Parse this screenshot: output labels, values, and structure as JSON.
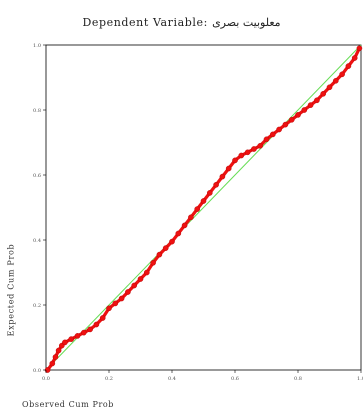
{
  "chart_data": {
    "type": "line",
    "title": "Dependent Variable: معلوبیت بصری",
    "xlabel": "Observed Cum Prob",
    "ylabel": "Expected Cum Prob",
    "xlim": [
      0,
      1
    ],
    "ylim": [
      0,
      1
    ],
    "xticks": [
      "0.0",
      "0.2",
      "0.4",
      "0.6",
      "0.8",
      "1.0"
    ],
    "yticks": [
      "0.0",
      "0.2",
      "0.4",
      "0.6",
      "0.8",
      "1.0"
    ],
    "grid": false,
    "series": [
      {
        "style": "points",
        "color": "#ee1111",
        "x": [
          0.005,
          0.02,
          0.03,
          0.04,
          0.05,
          0.06,
          0.08,
          0.1,
          0.12,
          0.14,
          0.16,
          0.18,
          0.2,
          0.22,
          0.24,
          0.26,
          0.28,
          0.3,
          0.32,
          0.34,
          0.36,
          0.38,
          0.4,
          0.42,
          0.44,
          0.46,
          0.48,
          0.5,
          0.52,
          0.54,
          0.56,
          0.58,
          0.6,
          0.62,
          0.64,
          0.66,
          0.68,
          0.7,
          0.72,
          0.74,
          0.76,
          0.78,
          0.8,
          0.82,
          0.84,
          0.86,
          0.88,
          0.9,
          0.92,
          0.94,
          0.96,
          0.98,
          0.995
        ],
        "y": [
          0.0,
          0.02,
          0.04,
          0.06,
          0.075,
          0.085,
          0.095,
          0.105,
          0.115,
          0.125,
          0.14,
          0.16,
          0.19,
          0.205,
          0.22,
          0.24,
          0.26,
          0.28,
          0.3,
          0.33,
          0.355,
          0.375,
          0.395,
          0.42,
          0.445,
          0.47,
          0.495,
          0.52,
          0.545,
          0.57,
          0.595,
          0.62,
          0.645,
          0.66,
          0.67,
          0.68,
          0.69,
          0.71,
          0.725,
          0.74,
          0.755,
          0.77,
          0.785,
          0.8,
          0.815,
          0.83,
          0.85,
          0.87,
          0.89,
          0.91,
          0.935,
          0.96,
          0.99
        ]
      }
    ],
    "reference_line": {
      "from": [
        0,
        0
      ],
      "to": [
        1,
        1
      ],
      "color": "#66dd55"
    }
  }
}
